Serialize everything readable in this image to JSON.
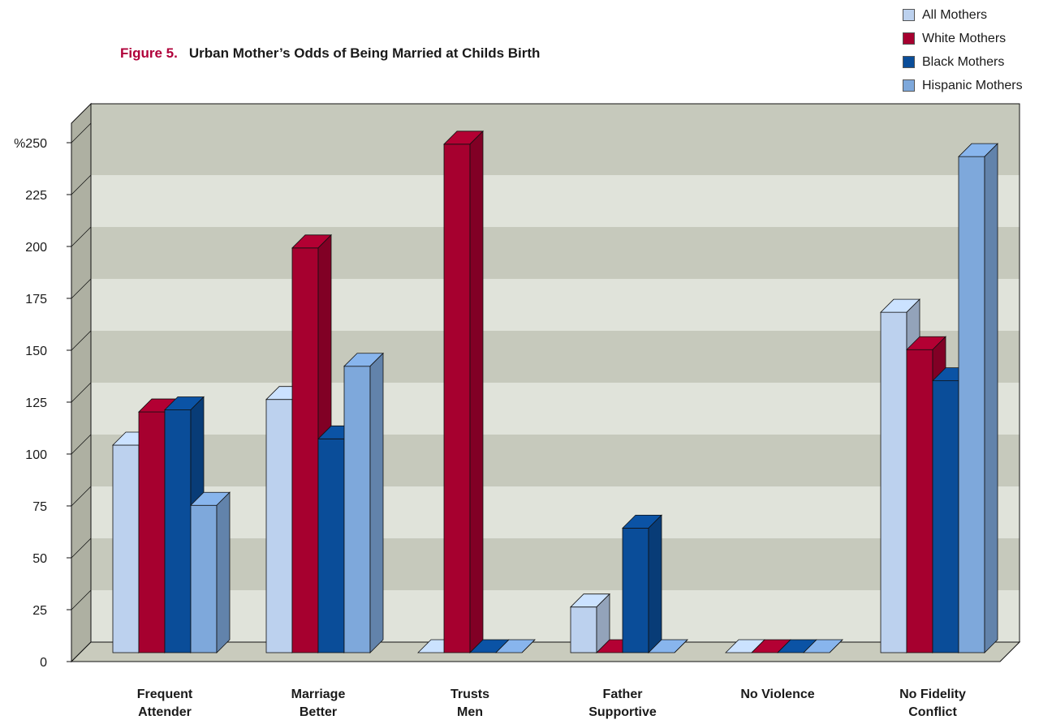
{
  "figure": {
    "number": "Figure 5.",
    "title": "Urban Mother’s Odds of Being Married at Childs Birth"
  },
  "colors": {
    "all": "#bcd1ee",
    "white": "#a6002f",
    "black": "#0a4d99",
    "hispanic": "#7ea8db",
    "band_dark": "#c6c9bc",
    "band_light": "#e0e3da",
    "side_wall": "#aeb0a2",
    "floor": "#c9cbbd"
  },
  "chart_data": {
    "type": "bar",
    "title": "Urban Mother’s Odds of Being Married at Childs Birth",
    "xlabel": "",
    "ylabel": "",
    "ylim": [
      0,
      250
    ],
    "yticks": [
      0,
      25,
      50,
      75,
      100,
      125,
      150,
      175,
      200,
      225,
      250
    ],
    "ytick_labels": [
      "0",
      "25",
      "50",
      "75",
      "100",
      "125",
      "150",
      "175",
      "200",
      "225",
      "%250"
    ],
    "grid": true,
    "legend_position": "top-right",
    "categories": [
      [
        "Frequent",
        "Attender"
      ],
      [
        "Marriage",
        "Better"
      ],
      [
        "Trusts",
        "Men"
      ],
      [
        "Father",
        "Supportive"
      ],
      [
        "No Violence"
      ],
      [
        "No Fidelity",
        "Conflict"
      ]
    ],
    "series": [
      {
        "name": "All Mothers",
        "color_key": "all",
        "values": [
          100,
          122,
          0,
          22,
          0,
          164
        ]
      },
      {
        "name": "White Mothers",
        "color_key": "white",
        "values": [
          116,
          195,
          245,
          0,
          0,
          146
        ]
      },
      {
        "name": "Black Mothers",
        "color_key": "black",
        "values": [
          117,
          103,
          0,
          60,
          0,
          131
        ]
      },
      {
        "name": "Hispanic Mothers",
        "color_key": "hispanic",
        "values": [
          71,
          138,
          0,
          0,
          0,
          239
        ]
      }
    ]
  }
}
